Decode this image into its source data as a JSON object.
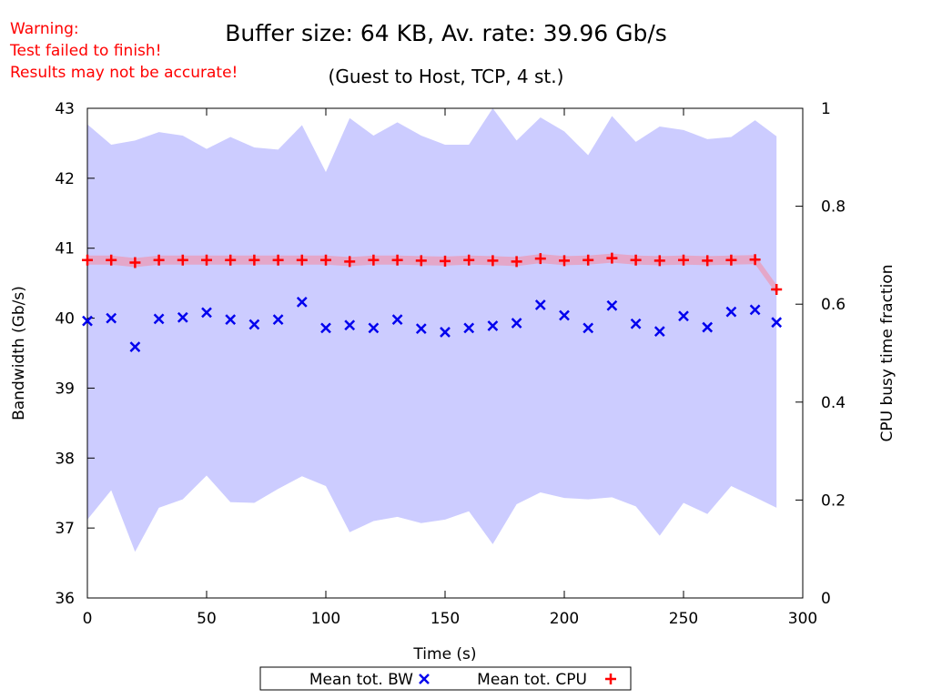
{
  "warning": {
    "line1": "Warning:",
    "line2": "Test failed to finish!",
    "line3": "Results may not be accurate!"
  },
  "chart_data": {
    "type": "scatter",
    "title": "Buffer size: 64 KB, Av. rate: 39.96 Gb/s",
    "subtitle": "(Guest to Host, TCP, 4 st.)",
    "xlabel": "Time (s)",
    "ylabel": "Bandwidth (Gb/s)",
    "y2label": "CPU busy time fraction",
    "xlim": [
      0,
      300
    ],
    "ylim": [
      36,
      43
    ],
    "y2lim": [
      0,
      1
    ],
    "xticks": [
      "0",
      "50",
      "100",
      "150",
      "200",
      "250",
      "300"
    ],
    "yticks": [
      "36",
      "37",
      "38",
      "39",
      "40",
      "41",
      "42",
      "43"
    ],
    "y2ticks": [
      "0",
      "0.2",
      "0.4",
      "0.6",
      "0.8",
      "1"
    ],
    "grid": false,
    "legend_position": "bottom",
    "x": [
      0,
      10,
      20,
      30,
      40,
      50,
      60,
      70,
      80,
      90,
      100,
      110,
      120,
      130,
      140,
      150,
      160,
      170,
      180,
      190,
      200,
      210,
      220,
      230,
      240,
      250,
      260,
      270,
      280,
      289
    ],
    "series": [
      {
        "name": "Mean tot. BW",
        "axis": "left",
        "marker": "x",
        "color": "#0000ee",
        "values": [
          39.96,
          40.0,
          39.59,
          39.99,
          40.01,
          40.08,
          39.98,
          39.91,
          39.98,
          40.23,
          39.86,
          39.9,
          39.86,
          39.98,
          39.85,
          39.8,
          39.86,
          39.89,
          39.93,
          40.19,
          40.04,
          39.86,
          40.18,
          39.92,
          39.81,
          40.03,
          39.87,
          40.09,
          40.12,
          39.94
        ],
        "band_upper": [
          42.77,
          42.48,
          42.54,
          42.66,
          42.61,
          42.42,
          42.59,
          42.44,
          42.41,
          42.76,
          42.09,
          42.86,
          42.61,
          42.8,
          42.61,
          42.48,
          42.48,
          43.0,
          42.54,
          42.87,
          42.67,
          42.33,
          42.89,
          42.52,
          42.74,
          42.69,
          42.56,
          42.59,
          42.83,
          42.6
        ],
        "band_lower": [
          37.12,
          37.54,
          36.66,
          37.29,
          37.41,
          37.75,
          37.37,
          37.36,
          37.56,
          37.74,
          37.6,
          36.94,
          37.1,
          37.16,
          37.07,
          37.12,
          37.24,
          36.77,
          37.34,
          37.51,
          37.43,
          37.41,
          37.44,
          37.31,
          36.89,
          37.36,
          37.2,
          37.6,
          37.44,
          37.29
        ],
        "band_color": "#ccccff"
      },
      {
        "name": "Mean tot. CPU",
        "axis": "right",
        "marker": "+",
        "color": "#ff0000",
        "values": [
          0.69,
          0.69,
          0.685,
          0.69,
          0.69,
          0.69,
          0.69,
          0.69,
          0.69,
          0.69,
          0.69,
          0.687,
          0.69,
          0.69,
          0.689,
          0.688,
          0.69,
          0.689,
          0.687,
          0.693,
          0.689,
          0.69,
          0.694,
          0.69,
          0.689,
          0.69,
          0.689,
          0.69,
          0.691,
          0.63
        ],
        "band_color": "#e8a0c0"
      }
    ]
  }
}
